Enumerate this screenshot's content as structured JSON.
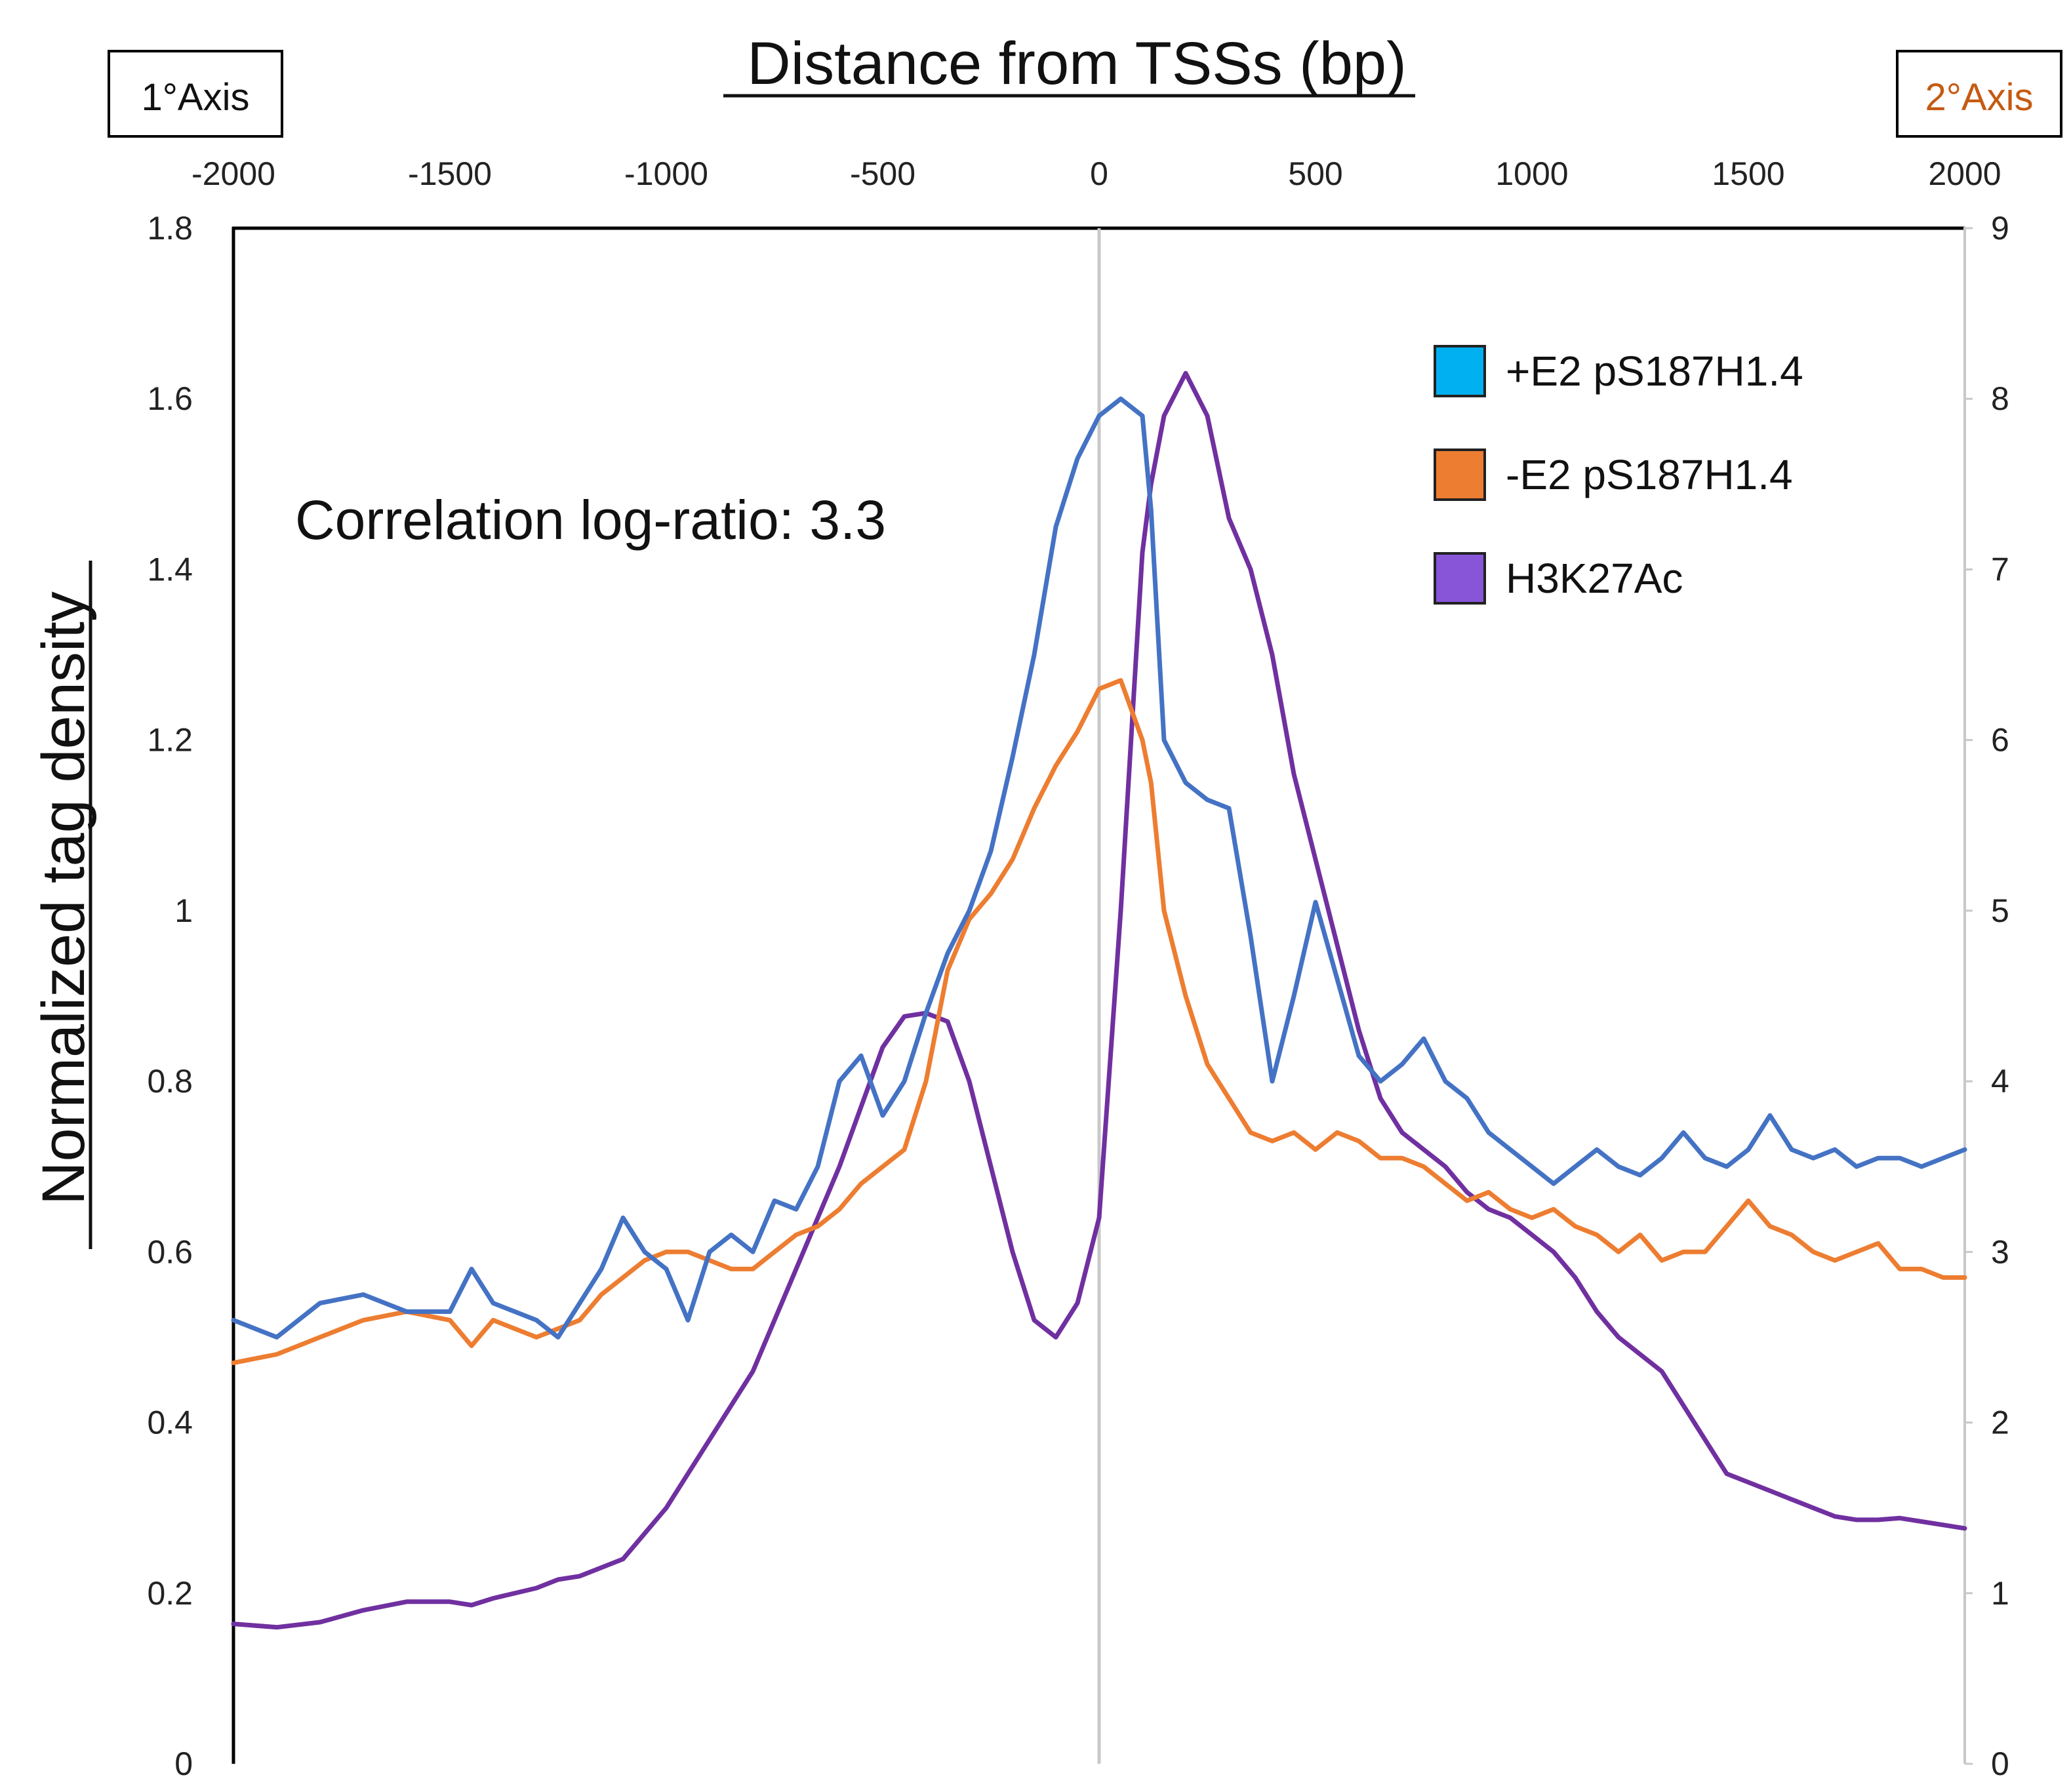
{
  "chart_data": {
    "type": "line",
    "title": "Distance from TSSs (bp)",
    "xlabel": "Distance from TSSs (bp)",
    "ylabel": "Normalized tag density",
    "annotation": "Correlation log-ratio: 3.3",
    "primary_axis_label": "1°Axis",
    "secondary_axis_label": "2°Axis",
    "xlim": [
      -2000,
      2000
    ],
    "ylim": [
      0,
      1.8
    ],
    "y2lim": [
      0,
      9
    ],
    "x_ticks": [
      -2000,
      -1500,
      -1000,
      -500,
      0,
      500,
      1000,
      1500,
      2000
    ],
    "y_ticks": [
      "0",
      "0.2",
      "0.4",
      "0.6",
      "0.8",
      "1",
      "1.2",
      "1.4",
      "1.6",
      "1.8"
    ],
    "y2_ticks": [
      "0",
      "1",
      "2",
      "3",
      "4",
      "5",
      "6",
      "7",
      "8",
      "9"
    ],
    "legend_position": "top-right",
    "series": [
      {
        "name": "+E2 pS187H1.4",
        "axis": "primary",
        "color": "#4472C4",
        "legend_color": "#00B0F0",
        "x": [
          -2000,
          -1900,
          -1800,
          -1700,
          -1600,
          -1500,
          -1450,
          -1400,
          -1300,
          -1250,
          -1200,
          -1150,
          -1100,
          -1050,
          -1000,
          -950,
          -900,
          -850,
          -800,
          -750,
          -700,
          -650,
          -600,
          -550,
          -500,
          -450,
          -400,
          -350,
          -300,
          -250,
          -200,
          -150,
          -100,
          -50,
          0,
          50,
          100,
          120,
          150,
          200,
          250,
          300,
          350,
          400,
          450,
          500,
          550,
          600,
          650,
          700,
          750,
          800,
          850,
          900,
          950,
          1000,
          1050,
          1100,
          1150,
          1200,
          1250,
          1300,
          1350,
          1400,
          1450,
          1500,
          1550,
          1600,
          1650,
          1700,
          1750,
          1800,
          1850,
          1900,
          1950,
          2000
        ],
        "values": [
          0.52,
          0.5,
          0.54,
          0.55,
          0.53,
          0.53,
          0.58,
          0.54,
          0.52,
          0.5,
          0.54,
          0.58,
          0.64,
          0.6,
          0.58,
          0.52,
          0.6,
          0.62,
          0.6,
          0.66,
          0.65,
          0.7,
          0.8,
          0.83,
          0.76,
          0.8,
          0.88,
          0.95,
          1.0,
          1.07,
          1.18,
          1.3,
          1.45,
          1.53,
          1.58,
          1.6,
          1.58,
          1.47,
          1.2,
          1.15,
          1.13,
          1.12,
          0.97,
          0.8,
          0.9,
          1.01,
          0.92,
          0.83,
          0.8,
          0.82,
          0.85,
          0.8,
          0.78,
          0.74,
          0.72,
          0.7,
          0.68,
          0.7,
          0.72,
          0.7,
          0.69,
          0.71,
          0.74,
          0.71,
          0.7,
          0.72,
          0.76,
          0.72,
          0.71,
          0.72,
          0.7,
          0.71,
          0.71,
          0.7,
          0.71,
          0.72
        ]
      },
      {
        "name": "-E2 pS187H1.4",
        "axis": "primary",
        "color": "#ED7D31",
        "legend_color": "#ED7D31",
        "x": [
          -2000,
          -1900,
          -1800,
          -1700,
          -1600,
          -1500,
          -1450,
          -1400,
          -1300,
          -1250,
          -1200,
          -1150,
          -1100,
          -1050,
          -1000,
          -950,
          -900,
          -850,
          -800,
          -750,
          -700,
          -650,
          -600,
          -550,
          -500,
          -450,
          -400,
          -350,
          -300,
          -250,
          -200,
          -150,
          -100,
          -50,
          0,
          50,
          100,
          120,
          150,
          200,
          250,
          300,
          350,
          400,
          450,
          500,
          550,
          600,
          650,
          700,
          750,
          800,
          850,
          900,
          950,
          1000,
          1050,
          1100,
          1150,
          1200,
          1250,
          1300,
          1350,
          1400,
          1450,
          1500,
          1550,
          1600,
          1650,
          1700,
          1750,
          1800,
          1850,
          1900,
          1950,
          2000
        ],
        "values": [
          0.47,
          0.48,
          0.5,
          0.52,
          0.53,
          0.52,
          0.49,
          0.52,
          0.5,
          0.51,
          0.52,
          0.55,
          0.57,
          0.59,
          0.6,
          0.6,
          0.59,
          0.58,
          0.58,
          0.6,
          0.62,
          0.63,
          0.65,
          0.68,
          0.7,
          0.72,
          0.8,
          0.93,
          0.99,
          1.02,
          1.06,
          1.12,
          1.17,
          1.21,
          1.26,
          1.27,
          1.2,
          1.15,
          1.0,
          0.9,
          0.82,
          0.78,
          0.74,
          0.73,
          0.74,
          0.72,
          0.74,
          0.73,
          0.71,
          0.71,
          0.7,
          0.68,
          0.66,
          0.67,
          0.65,
          0.64,
          0.65,
          0.63,
          0.62,
          0.6,
          0.62,
          0.59,
          0.6,
          0.6,
          0.63,
          0.66,
          0.63,
          0.62,
          0.6,
          0.59,
          0.6,
          0.61,
          0.58,
          0.58,
          0.57,
          0.57
        ]
      },
      {
        "name": "H3K27Ac",
        "axis": "secondary",
        "color": "#7030A0",
        "legend_color": "#8855D8",
        "x": [
          -2000,
          -1900,
          -1800,
          -1700,
          -1600,
          -1500,
          -1450,
          -1400,
          -1300,
          -1250,
          -1200,
          -1150,
          -1100,
          -1050,
          -1000,
          -950,
          -900,
          -850,
          -800,
          -750,
          -700,
          -650,
          -600,
          -550,
          -500,
          -450,
          -400,
          -350,
          -300,
          -250,
          -200,
          -150,
          -100,
          -50,
          0,
          50,
          100,
          120,
          150,
          200,
          250,
          300,
          350,
          400,
          450,
          500,
          550,
          600,
          650,
          700,
          750,
          800,
          850,
          900,
          950,
          1000,
          1050,
          1100,
          1150,
          1200,
          1250,
          1300,
          1350,
          1400,
          1450,
          1500,
          1550,
          1600,
          1650,
          1700,
          1750,
          1800,
          1850,
          1900,
          1950,
          2000
        ],
        "values": [
          0.82,
          0.8,
          0.83,
          0.9,
          0.95,
          0.95,
          0.93,
          0.97,
          1.03,
          1.08,
          1.1,
          1.15,
          1.2,
          1.35,
          1.5,
          1.7,
          1.9,
          2.1,
          2.3,
          2.6,
          2.9,
          3.2,
          3.5,
          3.85,
          4.2,
          4.38,
          4.4,
          4.35,
          4.0,
          3.5,
          3.0,
          2.6,
          2.5,
          2.7,
          3.2,
          5.0,
          7.1,
          7.5,
          7.9,
          8.15,
          7.9,
          7.3,
          7.0,
          6.5,
          5.8,
          5.3,
          4.8,
          4.3,
          3.9,
          3.7,
          3.6,
          3.5,
          3.35,
          3.25,
          3.2,
          3.1,
          3.0,
          2.85,
          2.65,
          2.5,
          2.4,
          2.3,
          2.1,
          1.9,
          1.7,
          1.65,
          1.6,
          1.55,
          1.5,
          1.45,
          1.43,
          1.43,
          1.44,
          1.42,
          1.4,
          1.38
        ]
      }
    ]
  }
}
